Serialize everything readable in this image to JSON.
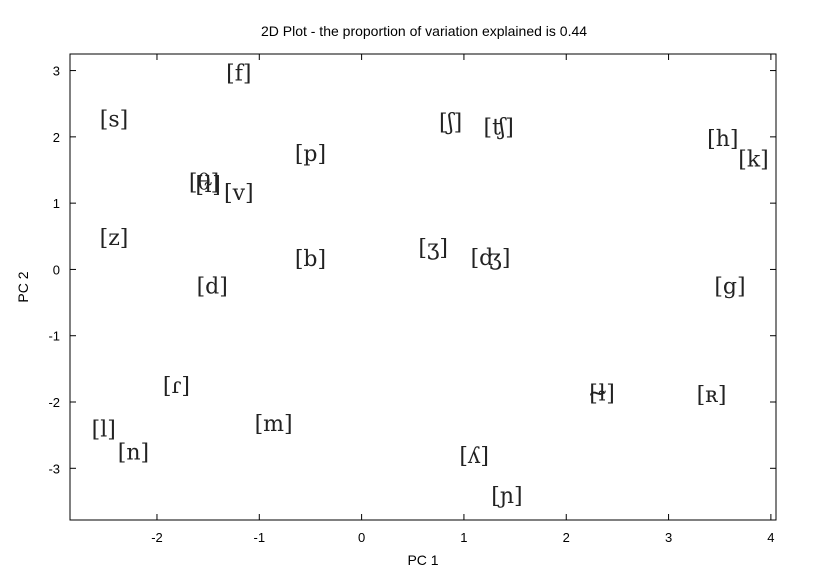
{
  "chart_data": {
    "type": "scatter",
    "title": "2D Plot - the proportion of variation explained is 0.44",
    "xlabel": "PC 1",
    "ylabel": "PC 2",
    "xlim": [
      -2.85,
      4.05
    ],
    "ylim": [
      -3.78,
      3.25
    ],
    "xticks": [
      -2,
      -1,
      0,
      1,
      2,
      3,
      4
    ],
    "yticks": [
      -3,
      -2,
      -1,
      0,
      1,
      2,
      3
    ],
    "grid": false,
    "points": [
      {
        "label": "[f]",
        "x": -1.2,
        "y": 2.97
      },
      {
        "label": "[s]",
        "x": -2.42,
        "y": 2.28
      },
      {
        "label": "[ʃ]",
        "x": 0.87,
        "y": 2.23
      },
      {
        "label": "[ʧ]",
        "x": 1.34,
        "y": 2.16
      },
      {
        "label": "[h]",
        "x": 3.53,
        "y": 1.98
      },
      {
        "label": "[p]",
        "x": -0.5,
        "y": 1.76
      },
      {
        "label": "[k]",
        "x": 3.83,
        "y": 1.67
      },
      {
        "label": "[θ]",
        "x": -1.54,
        "y": 1.33
      },
      {
        "label": "[ɫ]",
        "x": -1.5,
        "y": 1.29
      },
      {
        "label": "[v]",
        "x": -1.2,
        "y": 1.17
      },
      {
        "label": "[z]",
        "x": -2.42,
        "y": 0.49
      },
      {
        "label": "[ʒ]",
        "x": 0.7,
        "y": 0.34
      },
      {
        "label": "[ʤ]",
        "x": 1.26,
        "y": 0.19
      },
      {
        "label": "[b]",
        "x": -0.5,
        "y": 0.17
      },
      {
        "label": "[g]",
        "x": 3.6,
        "y": -0.24
      },
      {
        "label": "[d]",
        "x": -1.46,
        "y": -0.24
      },
      {
        "label": "[ɾ]",
        "x": -1.81,
        "y": -1.74
      },
      {
        "label": "[ɫ̴]",
        "x": 2.35,
        "y": -1.86
      },
      {
        "label": "[ʀ]",
        "x": 3.42,
        "y": -1.88
      },
      {
        "label": "[m]",
        "x": -0.86,
        "y": -2.32
      },
      {
        "label": "[l]",
        "x": -2.52,
        "y": -2.4
      },
      {
        "label": "[n]",
        "x": -2.23,
        "y": -2.75
      },
      {
        "label": "[ʎ]",
        "x": 1.1,
        "y": -2.8
      },
      {
        "label": "[ɲ]",
        "x": 1.42,
        "y": -3.4
      }
    ]
  }
}
